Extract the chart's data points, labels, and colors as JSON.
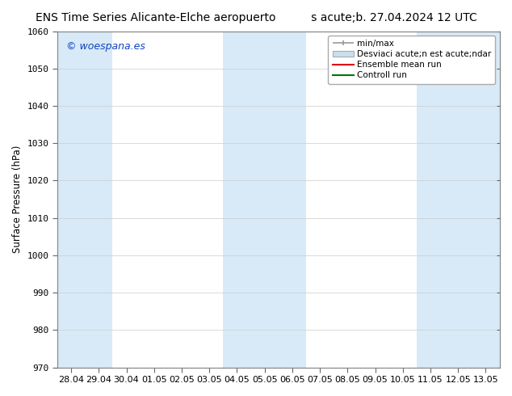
{
  "title": "ENS Time Series Alicante-Elche aeropuerto",
  "title2": "s acute;b. 27.04.2024 12 UTC",
  "ylabel": "Surface Pressure (hPa)",
  "ylim": [
    970,
    1060
  ],
  "yticks": [
    970,
    980,
    990,
    1000,
    1010,
    1020,
    1030,
    1040,
    1050,
    1060
  ],
  "x_labels": [
    "28.04",
    "29.04",
    "30.04",
    "01.05",
    "02.05",
    "03.05",
    "04.05",
    "05.05",
    "06.05",
    "07.05",
    "08.05",
    "09.05",
    "10.05",
    "11.05",
    "12.05",
    "13.05"
  ],
  "x_positions": [
    0,
    1,
    2,
    3,
    4,
    5,
    6,
    7,
    8,
    9,
    10,
    11,
    12,
    13,
    14,
    15
  ],
  "shaded_bands_xranges": [
    [
      0.0,
      1.0
    ],
    [
      6.0,
      8.0
    ],
    [
      13.0,
      15.0
    ]
  ],
  "band_color": "#d8eaf7",
  "bg_color": "#ffffff",
  "watermark": "© woespana.es",
  "watermark_color": "#1144bb",
  "legend_minmax_color": "#999999",
  "legend_std_color": "#c8dff0",
  "legend_ensemble_color": "#dd0000",
  "legend_control_color": "#007700",
  "title_fontsize": 10,
  "axis_fontsize": 8.5,
  "tick_fontsize": 8,
  "watermark_fontsize": 9
}
